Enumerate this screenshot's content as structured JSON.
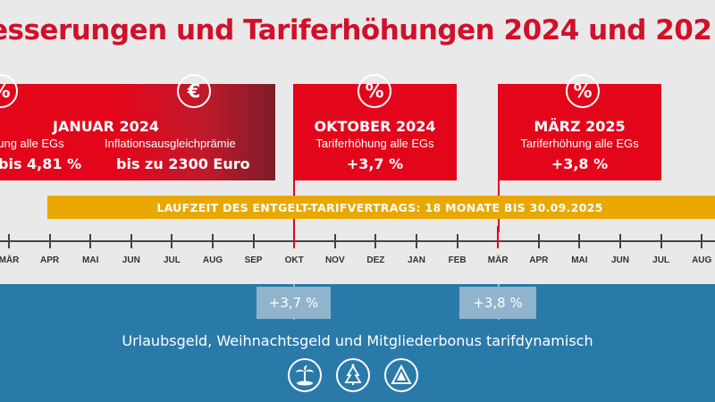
{
  "title": "esserungen und Tariferhöhungen 2024 und 202",
  "boxes": {
    "januar": {
      "heading": "JANUAR 2024",
      "left_sub": "hung alle EGs",
      "left_val": "bis 4,81 %",
      "right_sub": "Inflationsausgleichprämie",
      "right_val": "bis zu 2300 Euro",
      "icon1": "%",
      "icon2": "€"
    },
    "oktober": {
      "icon": "%",
      "heading": "OKTOBER 2024",
      "sub": "Tariferhöhung alle EGs",
      "val": "+3,7 %"
    },
    "maerz": {
      "icon": "%",
      "heading": "MÄRZ 2025",
      "sub": "Tariferhöhung alle EGs",
      "val": "+3,8 %"
    }
  },
  "laufzeit": "LAUFZEIT DES ENTGELT-TARIFVERTRAGS: 18 MONATE BIS 30.09.2025",
  "timeline": {
    "months": [
      "MÄR",
      "APR",
      "MAI",
      "JUN",
      "JUL",
      "AUG",
      "SEP",
      "OKT",
      "NOV",
      "DEZ",
      "JAN",
      "FEB",
      "MÄR",
      "APR",
      "MAI",
      "JUN",
      "JUL",
      "AUG"
    ]
  },
  "bottom": {
    "badge1": "+3,7 %",
    "badge2": "+3,8 %",
    "text": "Urlaubsgeld, Weihnachtsgeld und Mitgliederbonus tarifdynamisch",
    "icons": [
      "island-palm-icon",
      "christmas-tree-icon",
      "ig-metall-logo-icon"
    ]
  },
  "colors": {
    "red": "#e3061b",
    "dark_red": "#7e1d28",
    "yellow": "#e9a800",
    "blue": "#2a7aa9",
    "light_blue": "#8fb4cc",
    "background": "#e9e9e9"
  }
}
